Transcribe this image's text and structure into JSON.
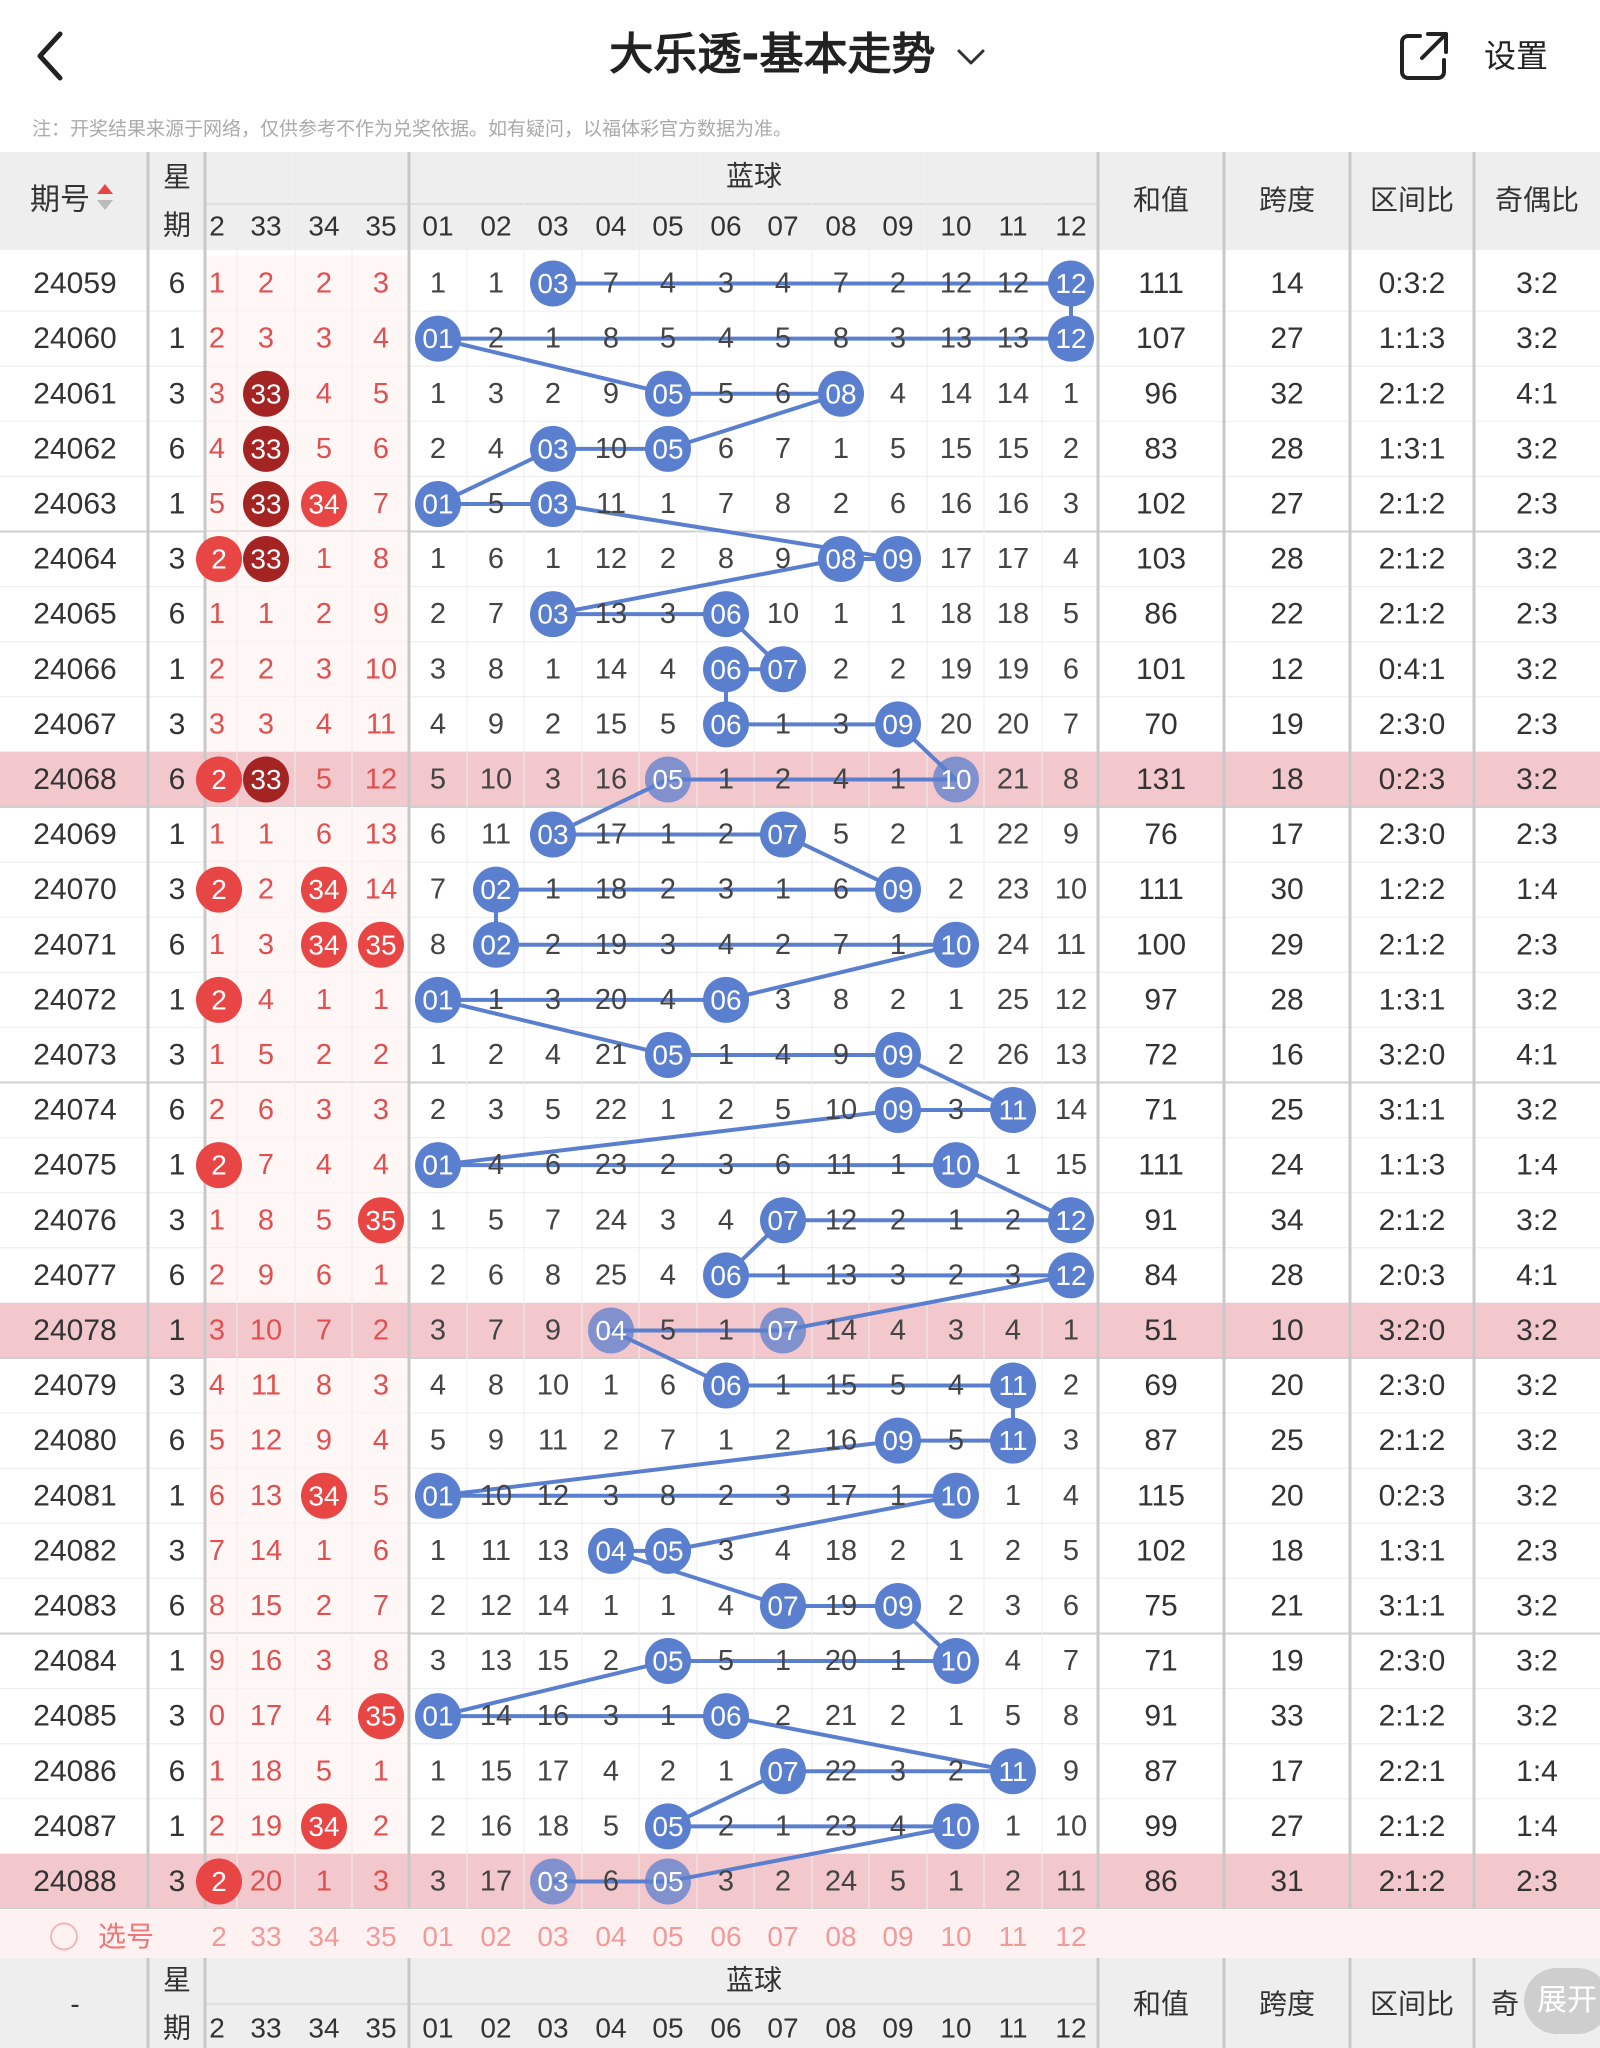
{
  "header": {
    "back_label": "返回",
    "title": "大乐透-基本走势",
    "settings_label": "设置",
    "notice": "注：开奖结果来源于网络，仅供参考不作为兑奖依据。如有疑问，以福体彩官方数据为准。"
  },
  "table_header": {
    "issue": "期号",
    "week_top": "星",
    "week_bottom": "期",
    "blue_group": "蓝球",
    "sum": "和值",
    "span": "跨度",
    "zone_ratio": "区间比",
    "odd_even": "奇偶比",
    "red_cols": [
      "2",
      "33",
      "34",
      "35"
    ],
    "blue_cols": [
      "01",
      "02",
      "03",
      "04",
      "05",
      "06",
      "07",
      "08",
      "09",
      "10",
      "11",
      "12"
    ]
  },
  "rows": [
    {
      "issue": "24059",
      "week": "6",
      "red": [
        "1",
        "2",
        "2",
        "3"
      ],
      "red_hits": [],
      "blue": [
        "1",
        "1",
        "03",
        "7",
        "4",
        "3",
        "4",
        "7",
        "2",
        "12",
        "12",
        "12"
      ],
      "blue_hits": [
        2,
        11
      ],
      "sum": "111",
      "span": "14",
      "ratio": "0:3:2",
      "oe": "3:2",
      "hl": false
    },
    {
      "issue": "24060",
      "week": "1",
      "red": [
        "2",
        "3",
        "3",
        "4"
      ],
      "red_hits": [],
      "blue": [
        "01",
        "2",
        "1",
        "8",
        "5",
        "4",
        "5",
        "8",
        "3",
        "13",
        "13",
        "12"
      ],
      "blue_hits": [
        0,
        11
      ],
      "sum": "107",
      "span": "27",
      "ratio": "1:1:3",
      "oe": "3:2",
      "hl": false
    },
    {
      "issue": "24061",
      "week": "3",
      "red": [
        "3",
        "33",
        "4",
        "5"
      ],
      "red_hits": [
        1
      ],
      "blue": [
        "1",
        "3",
        "2",
        "9",
        "05",
        "5",
        "6",
        "08",
        "4",
        "14",
        "14",
        "1"
      ],
      "blue_hits": [
        4,
        7
      ],
      "sum": "96",
      "span": "32",
      "ratio": "2:1:2",
      "oe": "4:1",
      "hl": false
    },
    {
      "issue": "24062",
      "week": "6",
      "red": [
        "4",
        "33",
        "5",
        "6"
      ],
      "red_hits": [
        1
      ],
      "blue": [
        "2",
        "4",
        "03",
        "10",
        "05",
        "6",
        "7",
        "1",
        "5",
        "15",
        "15",
        "2"
      ],
      "blue_hits": [
        2,
        4
      ],
      "sum": "83",
      "span": "28",
      "ratio": "1:3:1",
      "oe": "3:2",
      "hl": false
    },
    {
      "issue": "24063",
      "week": "1",
      "red": [
        "5",
        "33",
        "34",
        "7"
      ],
      "red_hits": [
        1,
        2
      ],
      "blue": [
        "01",
        "5",
        "03",
        "11",
        "1",
        "7",
        "8",
        "2",
        "6",
        "16",
        "16",
        "3"
      ],
      "blue_hits": [
        0,
        2
      ],
      "sum": "102",
      "span": "27",
      "ratio": "2:1:2",
      "oe": "2:3",
      "hl": false
    },
    {
      "issue": "24064",
      "week": "3",
      "red": [
        "2",
        "33",
        "1",
        "8"
      ],
      "red_hits": [
        0,
        1
      ],
      "blue": [
        "1",
        "6",
        "1",
        "12",
        "2",
        "8",
        "9",
        "08",
        "09",
        "17",
        "17",
        "4"
      ],
      "blue_hits": [
        7,
        8
      ],
      "sum": "103",
      "span": "28",
      "ratio": "2:1:2",
      "oe": "3:2",
      "hl": false
    },
    {
      "issue": "24065",
      "week": "6",
      "red": [
        "1",
        "1",
        "2",
        "9"
      ],
      "red_hits": [],
      "blue": [
        "2",
        "7",
        "03",
        "13",
        "3",
        "06",
        "10",
        "1",
        "1",
        "18",
        "18",
        "5"
      ],
      "blue_hits": [
        2,
        5
      ],
      "sum": "86",
      "span": "22",
      "ratio": "2:1:2",
      "oe": "2:3",
      "hl": false
    },
    {
      "issue": "24066",
      "week": "1",
      "red": [
        "2",
        "2",
        "3",
        "10"
      ],
      "red_hits": [],
      "blue": [
        "3",
        "8",
        "1",
        "14",
        "4",
        "06",
        "07",
        "2",
        "2",
        "19",
        "19",
        "6"
      ],
      "blue_hits": [
        5,
        6
      ],
      "sum": "101",
      "span": "12",
      "ratio": "0:4:1",
      "oe": "3:2",
      "hl": false
    },
    {
      "issue": "24067",
      "week": "3",
      "red": [
        "3",
        "3",
        "4",
        "11"
      ],
      "red_hits": [],
      "blue": [
        "4",
        "9",
        "2",
        "15",
        "5",
        "06",
        "1",
        "3",
        "09",
        "20",
        "20",
        "7"
      ],
      "blue_hits": [
        5,
        8
      ],
      "sum": "70",
      "span": "19",
      "ratio": "2:3:0",
      "oe": "2:3",
      "hl": false
    },
    {
      "issue": "24068",
      "week": "6",
      "red": [
        "2",
        "33",
        "5",
        "12"
      ],
      "red_hits": [
        0,
        1
      ],
      "blue": [
        "5",
        "10",
        "3",
        "16",
        "05",
        "1",
        "2",
        "4",
        "1",
        "10",
        "21",
        "8"
      ],
      "blue_hits": [
        4,
        9
      ],
      "sum": "131",
      "span": "18",
      "ratio": "0:2:3",
      "oe": "3:2",
      "hl": true
    },
    {
      "issue": "24069",
      "week": "1",
      "red": [
        "1",
        "1",
        "6",
        "13"
      ],
      "red_hits": [],
      "blue": [
        "6",
        "11",
        "03",
        "17",
        "1",
        "2",
        "07",
        "5",
        "2",
        "1",
        "22",
        "9"
      ],
      "blue_hits": [
        2,
        6
      ],
      "sum": "76",
      "span": "17",
      "ratio": "2:3:0",
      "oe": "2:3",
      "hl": false
    },
    {
      "issue": "24070",
      "week": "3",
      "red": [
        "2",
        "2",
        "34",
        "14"
      ],
      "red_hits": [
        0,
        2
      ],
      "blue": [
        "7",
        "02",
        "1",
        "18",
        "2",
        "3",
        "1",
        "6",
        "09",
        "2",
        "23",
        "10"
      ],
      "blue_hits": [
        1,
        8
      ],
      "sum": "111",
      "span": "30",
      "ratio": "1:2:2",
      "oe": "1:4",
      "hl": false
    },
    {
      "issue": "24071",
      "week": "6",
      "red": [
        "1",
        "3",
        "34",
        "35"
      ],
      "red_hits": [
        2,
        3
      ],
      "blue": [
        "8",
        "02",
        "2",
        "19",
        "3",
        "4",
        "2",
        "7",
        "1",
        "10",
        "24",
        "11"
      ],
      "blue_hits": [
        1,
        9
      ],
      "sum": "100",
      "span": "29",
      "ratio": "2:1:2",
      "oe": "2:3",
      "hl": false
    },
    {
      "issue": "24072",
      "week": "1",
      "red": [
        "2",
        "4",
        "1",
        "1"
      ],
      "red_hits": [
        0
      ],
      "blue": [
        "01",
        "1",
        "3",
        "20",
        "4",
        "06",
        "3",
        "8",
        "2",
        "1",
        "25",
        "12"
      ],
      "blue_hits": [
        0,
        5
      ],
      "sum": "97",
      "span": "28",
      "ratio": "1:3:1",
      "oe": "3:2",
      "hl": false
    },
    {
      "issue": "24073",
      "week": "3",
      "red": [
        "1",
        "5",
        "2",
        "2"
      ],
      "red_hits": [],
      "blue": [
        "1",
        "2",
        "4",
        "21",
        "05",
        "1",
        "4",
        "9",
        "09",
        "2",
        "26",
        "13"
      ],
      "blue_hits": [
        4,
        8
      ],
      "sum": "72",
      "span": "16",
      "ratio": "3:2:0",
      "oe": "4:1",
      "hl": false
    },
    {
      "issue": "24074",
      "week": "6",
      "red": [
        "2",
        "6",
        "3",
        "3"
      ],
      "red_hits": [],
      "blue": [
        "2",
        "3",
        "5",
        "22",
        "1",
        "2",
        "5",
        "10",
        "09",
        "3",
        "11",
        "14"
      ],
      "blue_hits": [
        8,
        10
      ],
      "sum": "71",
      "span": "25",
      "ratio": "3:1:1",
      "oe": "3:2",
      "hl": false
    },
    {
      "issue": "24075",
      "week": "1",
      "red": [
        "2",
        "7",
        "4",
        "4"
      ],
      "red_hits": [
        0
      ],
      "blue": [
        "01",
        "4",
        "6",
        "23",
        "2",
        "3",
        "6",
        "11",
        "1",
        "10",
        "1",
        "15"
      ],
      "blue_hits": [
        0,
        9
      ],
      "sum": "111",
      "span": "24",
      "ratio": "1:1:3",
      "oe": "1:4",
      "hl": false
    },
    {
      "issue": "24076",
      "week": "3",
      "red": [
        "1",
        "8",
        "5",
        "35"
      ],
      "red_hits": [
        3
      ],
      "blue": [
        "1",
        "5",
        "7",
        "24",
        "3",
        "4",
        "07",
        "12",
        "2",
        "1",
        "2",
        "12"
      ],
      "blue_hits": [
        6,
        11
      ],
      "sum": "91",
      "span": "34",
      "ratio": "2:1:2",
      "oe": "3:2",
      "hl": false
    },
    {
      "issue": "24077",
      "week": "6",
      "red": [
        "2",
        "9",
        "6",
        "1"
      ],
      "red_hits": [],
      "blue": [
        "2",
        "6",
        "8",
        "25",
        "4",
        "06",
        "1",
        "13",
        "3",
        "2",
        "3",
        "12"
      ],
      "blue_hits": [
        5,
        11
      ],
      "sum": "84",
      "span": "28",
      "ratio": "2:0:3",
      "oe": "4:1",
      "hl": false
    },
    {
      "issue": "24078",
      "week": "1",
      "red": [
        "3",
        "10",
        "7",
        "2"
      ],
      "red_hits": [],
      "blue": [
        "3",
        "7",
        "9",
        "04",
        "5",
        "1",
        "07",
        "14",
        "4",
        "3",
        "4",
        "1"
      ],
      "blue_hits": [
        3,
        6
      ],
      "sum": "51",
      "span": "10",
      "ratio": "3:2:0",
      "oe": "3:2",
      "hl": true
    },
    {
      "issue": "24079",
      "week": "3",
      "red": [
        "4",
        "11",
        "8",
        "3"
      ],
      "red_hits": [],
      "blue": [
        "4",
        "8",
        "10",
        "1",
        "6",
        "06",
        "1",
        "15",
        "5",
        "4",
        "11",
        "2"
      ],
      "blue_hits": [
        5,
        10
      ],
      "sum": "69",
      "span": "20",
      "ratio": "2:3:0",
      "oe": "3:2",
      "hl": false
    },
    {
      "issue": "24080",
      "week": "6",
      "red": [
        "5",
        "12",
        "9",
        "4"
      ],
      "red_hits": [],
      "blue": [
        "5",
        "9",
        "11",
        "2",
        "7",
        "1",
        "2",
        "16",
        "09",
        "5",
        "11",
        "3"
      ],
      "blue_hits": [
        8,
        10
      ],
      "sum": "87",
      "span": "25",
      "ratio": "2:1:2",
      "oe": "3:2",
      "hl": false
    },
    {
      "issue": "24081",
      "week": "1",
      "red": [
        "6",
        "13",
        "34",
        "5"
      ],
      "red_hits": [
        2
      ],
      "blue": [
        "01",
        "10",
        "12",
        "3",
        "8",
        "2",
        "3",
        "17",
        "1",
        "10",
        "1",
        "4"
      ],
      "blue_hits": [
        0,
        9
      ],
      "sum": "115",
      "span": "20",
      "ratio": "0:2:3",
      "oe": "3:2",
      "hl": false
    },
    {
      "issue": "24082",
      "week": "3",
      "red": [
        "7",
        "14",
        "1",
        "6"
      ],
      "red_hits": [],
      "blue": [
        "1",
        "11",
        "13",
        "04",
        "05",
        "3",
        "4",
        "18",
        "2",
        "1",
        "2",
        "5"
      ],
      "blue_hits": [
        3,
        4
      ],
      "sum": "102",
      "span": "18",
      "ratio": "1:3:1",
      "oe": "2:3",
      "hl": false
    },
    {
      "issue": "24083",
      "week": "6",
      "red": [
        "8",
        "15",
        "2",
        "7"
      ],
      "red_hits": [],
      "blue": [
        "2",
        "12",
        "14",
        "1",
        "1",
        "4",
        "07",
        "19",
        "09",
        "2",
        "3",
        "6"
      ],
      "blue_hits": [
        6,
        8
      ],
      "sum": "75",
      "span": "21",
      "ratio": "3:1:1",
      "oe": "3:2",
      "hl": false
    },
    {
      "issue": "24084",
      "week": "1",
      "red": [
        "9",
        "16",
        "3",
        "8"
      ],
      "red_hits": [],
      "blue": [
        "3",
        "13",
        "15",
        "2",
        "05",
        "5",
        "1",
        "20",
        "1",
        "10",
        "4",
        "7"
      ],
      "blue_hits": [
        4,
        9
      ],
      "sum": "71",
      "span": "19",
      "ratio": "2:3:0",
      "oe": "3:2",
      "hl": false
    },
    {
      "issue": "24085",
      "week": "3",
      "red": [
        "0",
        "17",
        "4",
        "35"
      ],
      "red_hits": [
        3
      ],
      "blue": [
        "01",
        "14",
        "16",
        "3",
        "1",
        "06",
        "2",
        "21",
        "2",
        "1",
        "5",
        "8"
      ],
      "blue_hits": [
        0,
        5
      ],
      "sum": "91",
      "span": "33",
      "ratio": "2:1:2",
      "oe": "3:2",
      "hl": false
    },
    {
      "issue": "24086",
      "week": "6",
      "red": [
        "1",
        "18",
        "5",
        "1"
      ],
      "red_hits": [],
      "blue": [
        "1",
        "15",
        "17",
        "4",
        "2",
        "1",
        "07",
        "22",
        "3",
        "2",
        "11",
        "9"
      ],
      "blue_hits": [
        6,
        10
      ],
      "sum": "87",
      "span": "17",
      "ratio": "2:2:1",
      "oe": "1:4",
      "hl": false
    },
    {
      "issue": "24087",
      "week": "1",
      "red": [
        "2",
        "19",
        "34",
        "2"
      ],
      "red_hits": [
        2
      ],
      "blue": [
        "2",
        "16",
        "18",
        "5",
        "05",
        "2",
        "1",
        "23",
        "4",
        "10",
        "1",
        "10"
      ],
      "blue_hits": [
        4,
        9
      ],
      "sum": "99",
      "span": "27",
      "ratio": "2:1:2",
      "oe": "1:4",
      "hl": false
    },
    {
      "issue": "24088",
      "week": "3",
      "red": [
        "2",
        "20",
        "1",
        "3"
      ],
      "red_hits": [
        0
      ],
      "blue": [
        "3",
        "17",
        "03",
        "6",
        "05",
        "3",
        "2",
        "24",
        "5",
        "1",
        "2",
        "11"
      ],
      "blue_hits": [
        2,
        4
      ],
      "sum": "86",
      "span": "31",
      "ratio": "2:1:2",
      "oe": "2:3",
      "hl": true
    }
  ],
  "select_row": {
    "label": "选号",
    "red": [
      "2",
      "33",
      "34",
      "35"
    ],
    "blue": [
      "01",
      "02",
      "03",
      "04",
      "05",
      "06",
      "07",
      "08",
      "09",
      "10",
      "11",
      "12"
    ]
  },
  "footer_header": {
    "issue": "-",
    "week_top": "星",
    "week_bottom": "期",
    "blue_group": "蓝球",
    "sum": "和值",
    "span": "跨度",
    "zone_ratio": "区间比",
    "odd_even": "奇",
    "red_cols": [
      "2",
      "33",
      "34",
      "35"
    ],
    "blue_cols": [
      "01",
      "02",
      "03",
      "04",
      "05",
      "06",
      "07",
      "08",
      "09",
      "10",
      "11",
      "12"
    ]
  },
  "expand_label": "展开",
  "colors": {
    "blue_ball": "#5b7fcf",
    "red_ball": "#e84545",
    "dark_red_ball": "#a42424",
    "red_text": "#e05050",
    "highlight_row": "#f2c8cc",
    "header_bg": "#eeeeee"
  }
}
